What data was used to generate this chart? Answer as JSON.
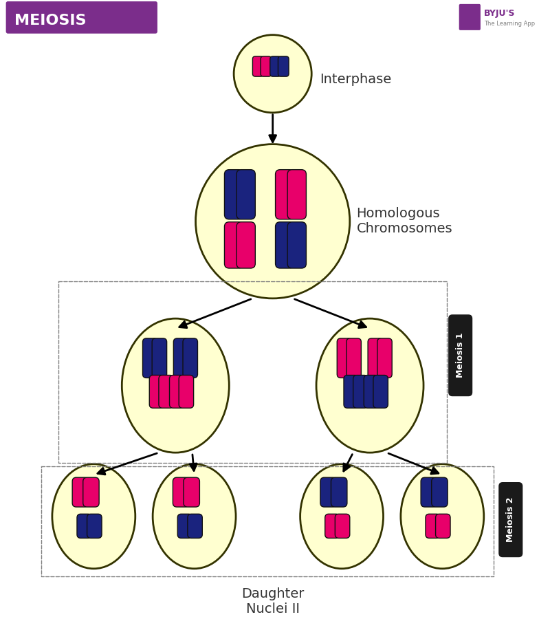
{
  "title": "MEIOSIS",
  "title_bg": "#7B2D8B",
  "title_color": "#FFFFFF",
  "bg_color": "#FFFFFF",
  "cell_fill": "#FFFFD0",
  "cell_edge": "#999900",
  "cell_edge2": "#333300",
  "text_color": "#333333",
  "label_interphase": "Interphase",
  "label_homologous": "Homologous\nChromosomes",
  "label_daughter": "Daughter\nNuclei II",
  "label_meiosis1": "Meiosis 1",
  "label_meiosis2": "Meiosis 2",
  "pink": "#E8006A",
  "blue": "#1A237E",
  "near_black": "#1a1a1a",
  "dark_shadow": "#111111"
}
